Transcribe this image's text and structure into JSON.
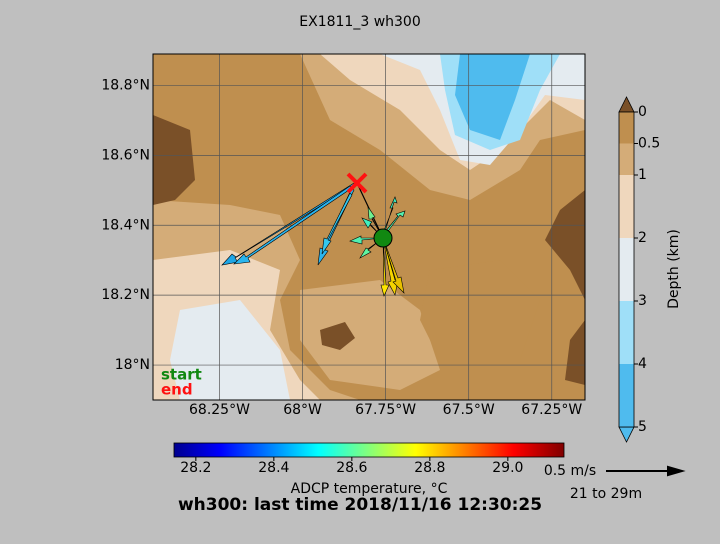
{
  "title": "EX1811_3 wh300",
  "map": {
    "xlim": [
      -68.45,
      -67.15
    ],
    "ylim": [
      17.9,
      18.89
    ],
    "lat_ticks": [
      {
        "value": 18.0,
        "label": "18°N"
      },
      {
        "value": 18.2,
        "label": "18.2°N"
      },
      {
        "value": 18.4,
        "label": "18.4°N"
      },
      {
        "value": 18.6,
        "label": "18.6°N"
      },
      {
        "value": 18.8,
        "label": "18.8°N"
      }
    ],
    "lon_ticks": [
      {
        "value": -68.25,
        "label": "68.25°W"
      },
      {
        "value": -68.0,
        "label": "68°W"
      },
      {
        "value": -67.75,
        "label": "67.75°W"
      },
      {
        "value": -67.5,
        "label": "67.5°W"
      },
      {
        "value": -67.25,
        "label": "67.25°W"
      }
    ],
    "legend": {
      "start": "start",
      "end": "end"
    }
  },
  "depth_colorbar": {
    "label": "Depth (km)",
    "lim": [
      0,
      5
    ],
    "ticks": [
      0,
      0.5,
      1,
      2,
      3,
      4,
      5
    ]
  },
  "temperature_colorbar": {
    "label": "ADCP temperature, °C",
    "lim": [
      28.144,
      29.144
    ],
    "ticks": [
      {
        "value": 28.2,
        "label": "28.2"
      },
      {
        "value": 28.4,
        "label": "28.4"
      },
      {
        "value": 28.6,
        "label": "28.6"
      },
      {
        "value": 28.8,
        "label": "28.8"
      },
      {
        "value": 29.0,
        "label": "29.0"
      }
    ]
  },
  "scale": {
    "speed": "0.5 m/s",
    "depth_range": "21 to 29m"
  },
  "footer": "wh300: last time 2018/11/16 12:30:25"
}
